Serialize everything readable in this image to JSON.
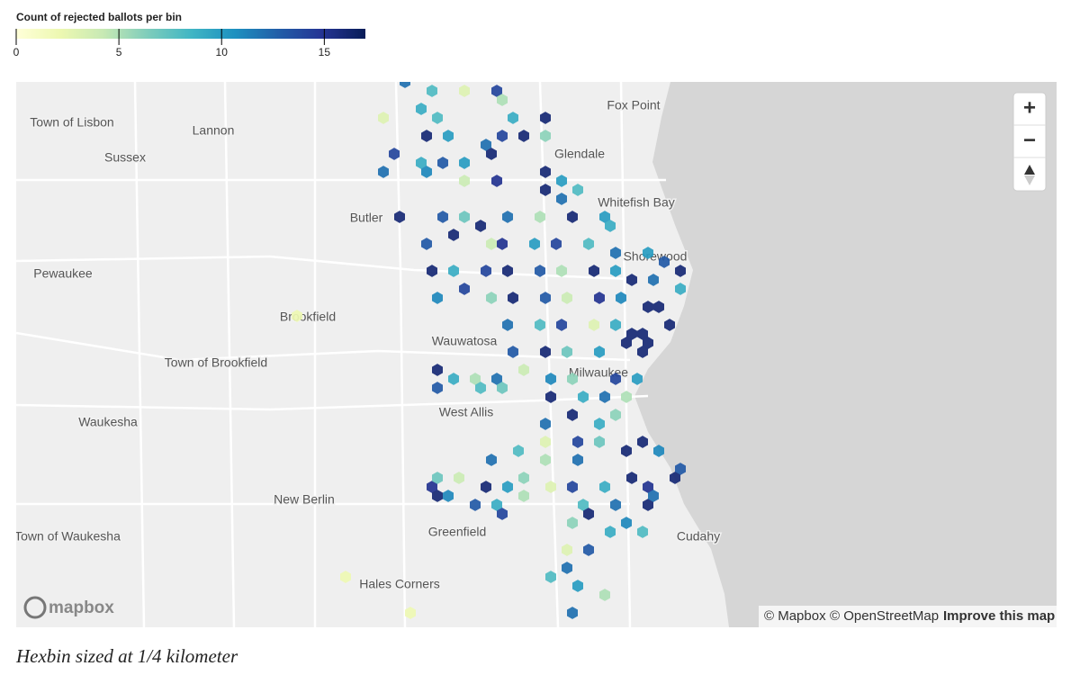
{
  "legend": {
    "title": "Count of rejected ballots per bin",
    "range": [
      0,
      17
    ],
    "ticks": [
      0,
      5,
      10,
      15
    ],
    "colors": [
      "#ffffd9",
      "#edf8b1",
      "#c7e9b4",
      "#7fcdbb",
      "#41b6c4",
      "#1d91c0",
      "#225ea8",
      "#253494",
      "#081d58"
    ]
  },
  "places": [
    "Town of Lisbon",
    "Lannon",
    "Sussex",
    "Fox Point",
    "Glendale",
    "Whitefish Bay",
    "Butler",
    "Shorewood",
    "Pewaukee",
    "Brookfield",
    "Wauwatosa",
    "Town of Brookfield",
    "Milwaukee",
    "West Allis",
    "Waukesha",
    "New Berlin",
    "Town of Waukesha",
    "Greenfield",
    "Cudahy",
    "Hales Corners"
  ],
  "hexbins": {
    "col": [
      36,
      38,
      44,
      45,
      46,
      49,
      37,
      39,
      34,
      41,
      38,
      40,
      43,
      45,
      47,
      49,
      35,
      37,
      39,
      41,
      44,
      34,
      38,
      41,
      44,
      49,
      50,
      52,
      49,
      50,
      35,
      39,
      41,
      43,
      45,
      48,
      51,
      54,
      55,
      38,
      40,
      44,
      45,
      48,
      50,
      53,
      55,
      58,
      60,
      61,
      38,
      40,
      43,
      45,
      48,
      50,
      53,
      55,
      57,
      59,
      61,
      39,
      41,
      44,
      46,
      49,
      51,
      54,
      56,
      58,
      59,
      45,
      48,
      50,
      53,
      55,
      57,
      58,
      60,
      46,
      49,
      51,
      54,
      56,
      58,
      58,
      39,
      40,
      42,
      44,
      47,
      49,
      51,
      55,
      57,
      39,
      43,
      45,
      49,
      52,
      54,
      56,
      49,
      51,
      54,
      55,
      49,
      52,
      54,
      46,
      44,
      49,
      52,
      56,
      58,
      59,
      61,
      38,
      39,
      41,
      43,
      45,
      47,
      49,
      51,
      54,
      57,
      58,
      61,
      39,
      40,
      42,
      44,
      47,
      52,
      55,
      58,
      59,
      45,
      51,
      53,
      56,
      58,
      55,
      51,
      53,
      51,
      49,
      52,
      54,
      51,
      36,
      30,
      26
    ],
    "row": [
      0,
      1,
      1,
      2,
      4,
      4,
      3,
      4,
      4,
      1,
      6,
      6,
      7,
      6,
      6,
      6,
      8,
      9,
      9,
      9,
      8,
      10,
      10,
      11,
      11,
      10,
      11,
      12,
      12,
      13,
      15,
      15,
      15,
      16,
      15,
      15,
      15,
      15,
      16,
      18,
      17,
      18,
      18,
      18,
      18,
      18,
      19,
      19,
      20,
      21,
      21,
      21,
      21,
      21,
      21,
      21,
      21,
      21,
      22,
      22,
      23,
      24,
      23,
      24,
      24,
      24,
      24,
      24,
      24,
      25,
      25,
      27,
      27,
      27,
      27,
      27,
      28,
      28,
      27,
      30,
      30,
      30,
      30,
      29,
      29,
      30,
      32,
      33,
      33,
      33,
      32,
      33,
      33,
      33,
      33,
      34,
      34,
      34,
      35,
      35,
      35,
      35,
      38,
      37,
      38,
      37,
      40,
      40,
      40,
      41,
      42,
      42,
      42,
      41,
      40,
      41,
      43,
      45,
      44,
      44,
      45,
      45,
      44,
      45,
      45,
      45,
      44,
      45,
      44,
      46,
      46,
      47,
      47,
      46,
      47,
      47,
      47,
      46,
      48,
      49,
      48,
      49,
      50,
      50,
      52,
      52,
      54,
      55,
      56,
      57,
      59,
      59,
      55,
      26
    ],
    "count": [
      12,
      8,
      14,
      5,
      9,
      16,
      9,
      8,
      3,
      3,
      16,
      10,
      12,
      14,
      16,
      6,
      14,
      9,
      13,
      10,
      16,
      12,
      11,
      4,
      15,
      16,
      10,
      8,
      16,
      12,
      16,
      13,
      7,
      16,
      12,
      5,
      16,
      10,
      9,
      13,
      16,
      4,
      15,
      10,
      14,
      8,
      12,
      10,
      13,
      16,
      16,
      9,
      14,
      16,
      13,
      5,
      16,
      10,
      16,
      12,
      9,
      11,
      14,
      6,
      16,
      13,
      4,
      15,
      11,
      16,
      16,
      12,
      8,
      14,
      3,
      9,
      16,
      16,
      16,
      13,
      16,
      7,
      10,
      16,
      16,
      16,
      16,
      9,
      5,
      12,
      4,
      11,
      6,
      14,
      10,
      13,
      8,
      7,
      16,
      9,
      12,
      5,
      12,
      16,
      9,
      6,
      3,
      14,
      7,
      8,
      12,
      5,
      12,
      16,
      16,
      11,
      13,
      15,
      7,
      4,
      16,
      10,
      6,
      3,
      14,
      9,
      16,
      15,
      16,
      16,
      11,
      13,
      9,
      5,
      8,
      12,
      16,
      12,
      14,
      6,
      16,
      11,
      8,
      9,
      3,
      13,
      12,
      8,
      10,
      5,
      12,
      2,
      2,
      2
    ]
  },
  "controls": {
    "zoom_in": "+",
    "zoom_out": "−"
  },
  "logo": "mapbox",
  "attribution": [
    "© Mapbox",
    "© OpenStreetMap",
    "Improve this map"
  ],
  "caption": "Hexbin sized at 1/4 kilometer"
}
